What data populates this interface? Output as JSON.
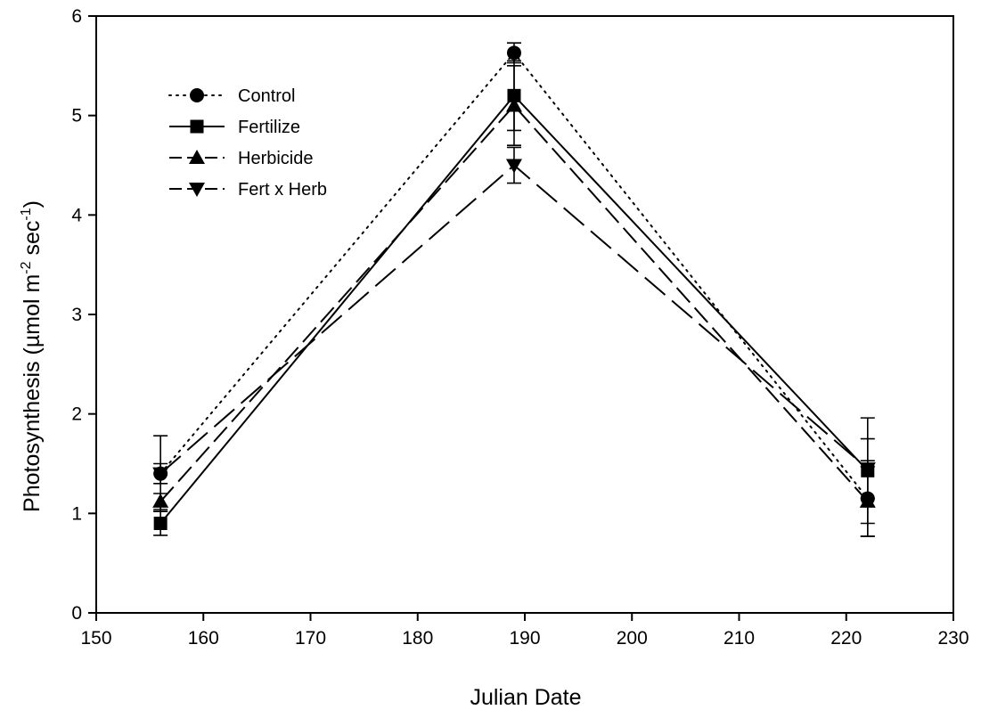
{
  "chart_data": {
    "type": "line",
    "title": "",
    "xlabel": "Julian Date",
    "ylabel": {
      "main": "Photosynthesis (µmol m",
      "sup1": "-2",
      "mid": " sec",
      "sup2": "-1",
      "end": ")"
    },
    "xlim": [
      150,
      230
    ],
    "ylim": [
      0,
      6
    ],
    "xticks": [
      "150",
      "160",
      "170",
      "180",
      "190",
      "200",
      "210",
      "220",
      "230"
    ],
    "yticks": [
      "0",
      "1",
      "2",
      "3",
      "4",
      "5",
      "6"
    ],
    "grid": false,
    "legend_position": "top-left",
    "x": [
      156,
      189,
      222
    ],
    "series": [
      {
        "name": "Control",
        "marker": "circle",
        "line_style": "dotted",
        "values": [
          1.4,
          5.63,
          1.15
        ],
        "error": [
          0.38,
          0.1,
          0.38
        ]
      },
      {
        "name": "Fertilize",
        "marker": "square",
        "line_style": "solid",
        "values": [
          0.9,
          5.2,
          1.43
        ],
        "error": [
          0.12,
          0.35,
          0.53
        ]
      },
      {
        "name": "Herbicide",
        "marker": "triangle-up",
        "line_style": "dashed",
        "values": [
          1.12,
          5.1,
          1.12
        ],
        "error": [
          0.08,
          0.4,
          0.35
        ]
      },
      {
        "name": "Fert x Herb",
        "marker": "triangle-down",
        "line_style": "long-dash",
        "values": [
          1.4,
          4.5,
          1.45
        ],
        "error": [
          0.1,
          0.18,
          0.3
        ]
      }
    ],
    "colors": {
      "line": "#000000",
      "background": "#ffffff"
    }
  }
}
